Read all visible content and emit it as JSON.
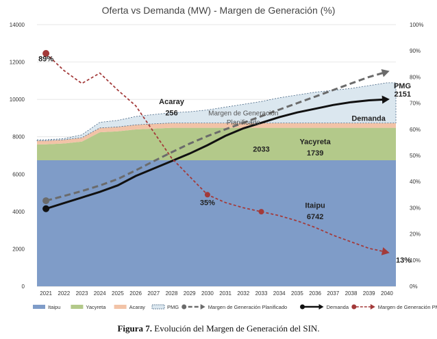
{
  "caption": {
    "label": "Figura 7.",
    "text": " Evolución del Margen de Generación del SIN."
  },
  "chart_data": {
    "type": "area",
    "title": "Oferta vs Demanda (MW) - Margen de Generación (%)",
    "x": [
      "2021",
      "2022",
      "2023",
      "2024",
      "2025",
      "2026",
      "2027",
      "2028",
      "2029",
      "2030",
      "2031",
      "2032",
      "2033",
      "2034",
      "2035",
      "2036",
      "2037",
      "2038",
      "2039",
      "2040"
    ],
    "ylim": [
      0,
      14000
    ],
    "y2lim": [
      0,
      100
    ],
    "yticks": [
      "0",
      "2000",
      "4000",
      "6000",
      "8000",
      "10000",
      "12000",
      "14000"
    ],
    "y2ticks": [
      "0%",
      "10%",
      "20%",
      "30%",
      "40%",
      "50%",
      "60%",
      "70%",
      "80%",
      "90%",
      "100%"
    ],
    "grid": true,
    "legend_position": "bottom",
    "series": [
      {
        "name": "Itaipu",
        "kind": "stacked-area",
        "axis": "left",
        "color": "#7f9cc8",
        "values": [
          6742,
          6742,
          6742,
          6742,
          6742,
          6742,
          6742,
          6742,
          6742,
          6742,
          6742,
          6742,
          6742,
          6742,
          6742,
          6742,
          6742,
          6742,
          6742,
          6742
        ]
      },
      {
        "name": "Yacyreta",
        "kind": "stacked-area",
        "axis": "left",
        "color": "#b3c98a",
        "values": [
          850,
          900,
          1000,
          1500,
          1550,
          1650,
          1700,
          1739,
          1739,
          1739,
          1739,
          1739,
          1739,
          1739,
          1739,
          1739,
          1739,
          1739,
          1739,
          1739
        ]
      },
      {
        "name": "Acaray",
        "kind": "stacked-area",
        "axis": "left",
        "color": "#f2c3a7",
        "values": [
          200,
          200,
          210,
          230,
          235,
          245,
          250,
          256,
          256,
          256,
          256,
          256,
          256,
          256,
          256,
          256,
          256,
          256,
          256,
          256
        ]
      },
      {
        "name": "PMG",
        "kind": "stacked-area",
        "axis": "left",
        "color": "#dbe7ef",
        "values": [
          50,
          60,
          150,
          300,
          350,
          450,
          500,
          550,
          600,
          700,
          850,
          1000,
          1150,
          1350,
          1500,
          1650,
          1750,
          1850,
          2000,
          2151
        ]
      },
      {
        "name": "Margen de Generación Planificado",
        "kind": "line",
        "axis": "right",
        "color": "#6b6b6b",
        "values": [
          32.7,
          34.5,
          36.4,
          38.5,
          41.0,
          44.3,
          47.8,
          51.2,
          54.5,
          57.4,
          60.0,
          62.5,
          65.0,
          67.5,
          70.0,
          72.5,
          75.0,
          77.5,
          80.0,
          82.0
        ]
      },
      {
        "name": "Demanda",
        "kind": "line",
        "axis": "left",
        "color": "#111111",
        "values": [
          4150,
          4450,
          4750,
          5050,
          5400,
          5900,
          6300,
          6700,
          7100,
          7550,
          8050,
          8450,
          8750,
          9050,
          9300,
          9500,
          9700,
          9850,
          9950,
          10000
        ]
      },
      {
        "name": "Margen de Generación PMG",
        "kind": "line",
        "axis": "right",
        "color": "#a33a3a",
        "values": [
          89,
          82.5,
          77.5,
          81.5,
          75,
          69,
          59,
          49,
          42,
          35,
          32,
          30,
          28.5,
          27,
          25,
          22.5,
          19.5,
          17,
          14.5,
          13
        ]
      }
    ],
    "annotations": [
      {
        "text": "89%",
        "x": "2021",
        "y2": 86
      },
      {
        "text": "35%",
        "x": "2030",
        "y2": 31
      },
      {
        "text": "13%",
        "x": "2040",
        "y2": 9
      },
      {
        "text": "Acaray",
        "x": "2028",
        "y": 9750
      },
      {
        "text": "256",
        "x": "2028",
        "y": 9150
      },
      {
        "text": "Margen de Generación",
        "x": "2032",
        "y": 9150
      },
      {
        "text": "Planificado",
        "x": "2032",
        "y": 8650
      },
      {
        "text": "2033",
        "x": "2033",
        "y": 7200
      },
      {
        "text": "Yacyreta",
        "x": "2036",
        "y": 7600
      },
      {
        "text": "1739",
        "x": "2036",
        "y": 7000
      },
      {
        "text": "Itaipu",
        "x": "2036",
        "y": 4200
      },
      {
        "text": "6742",
        "x": "2036",
        "y": 3600
      },
      {
        "text": "Demanda",
        "x": "2039",
        "y": 8850
      },
      {
        "text": "PMG",
        "x": "2040",
        "y": 10600
      },
      {
        "text": "2151",
        "x": "2040",
        "y": 10150
      }
    ],
    "legend": [
      "Itaipu",
      "Yacyreta",
      "Acaray",
      "PMG",
      "Margen de Generación Planificado",
      "Demanda",
      "Margen de Generación PMG"
    ]
  }
}
